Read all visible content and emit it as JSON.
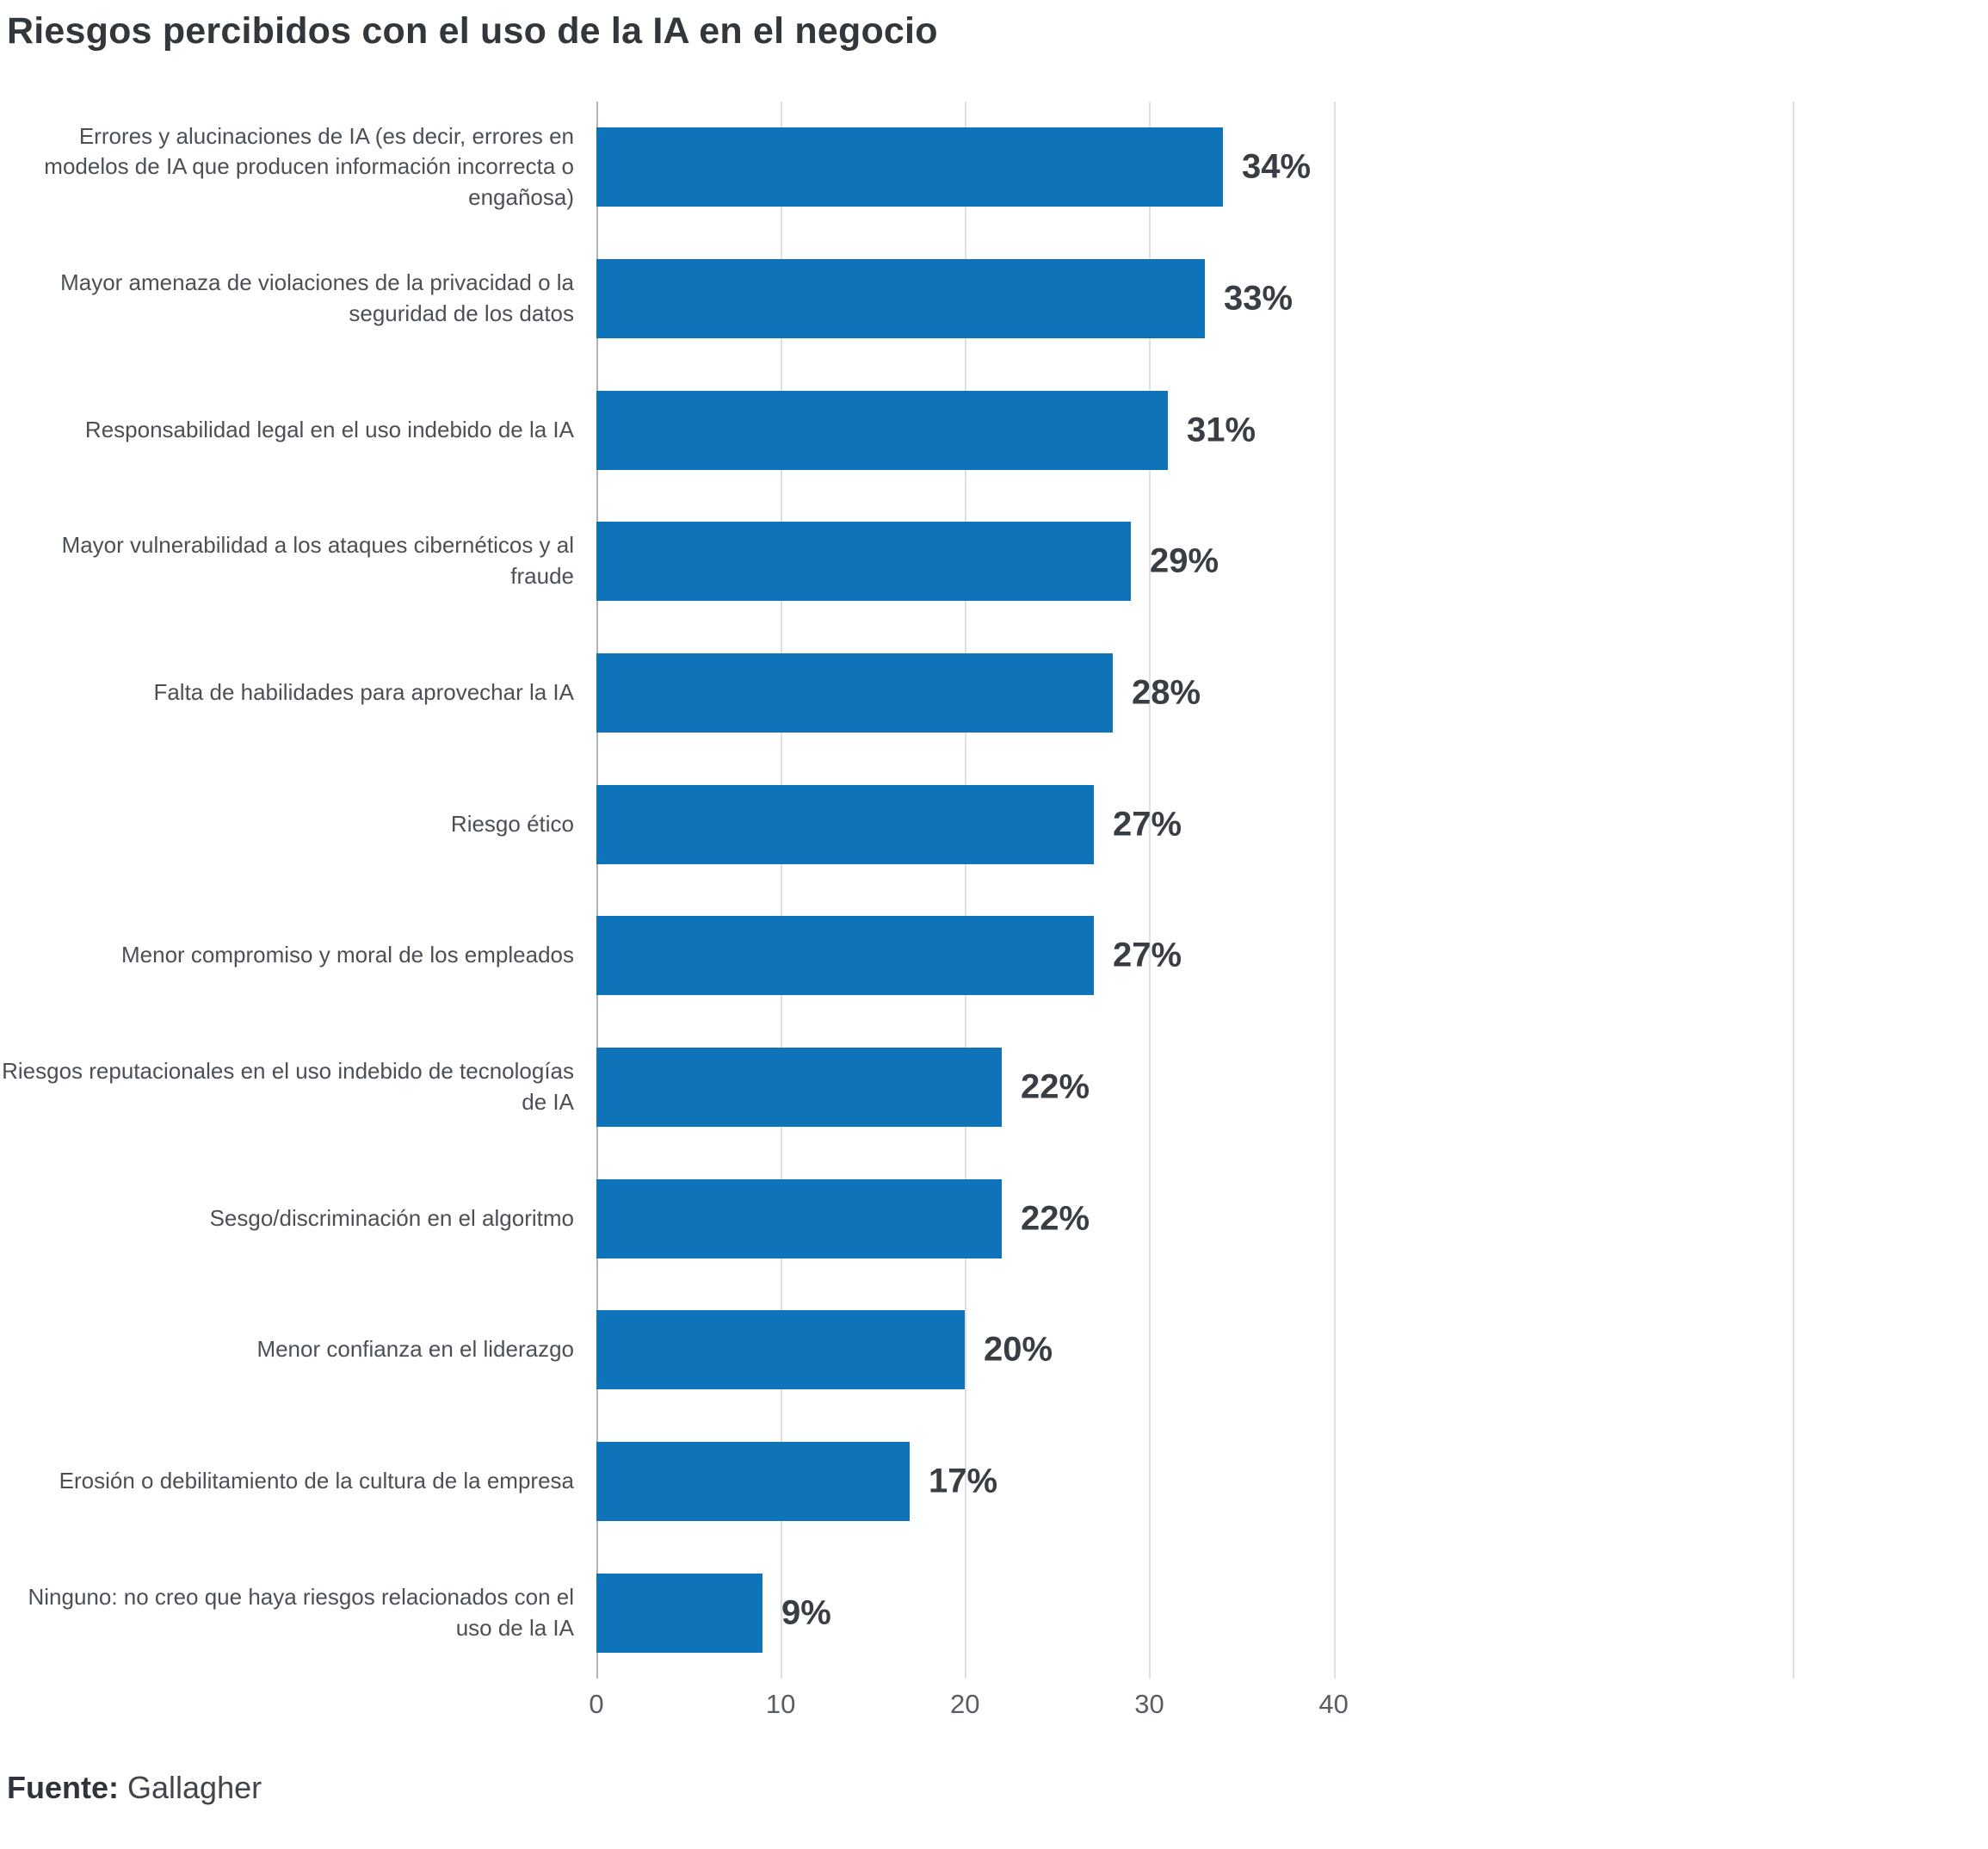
{
  "title": "Riesgos percibidos con el uso de la IA en el negocio",
  "source": {
    "label": "Fuente:",
    "value": "Gallagher"
  },
  "colors": {
    "bar_fill": "#0F73B9",
    "value_label": "#383E44",
    "category_label": "#4A5056",
    "gridline": "#DDE1E5",
    "axis_line": "#AFB5BA",
    "title_text": "#32373C"
  },
  "chart_data": {
    "type": "bar",
    "orientation": "horizontal",
    "title": "Riesgos percibidos con el uso de la IA en el negocio",
    "source": "Gallagher",
    "value_suffix": "%",
    "xlim": [
      0,
      40
    ],
    "plot_max": 65,
    "ticks": [
      0,
      10,
      20,
      30,
      40
    ],
    "grid": "vertical-light",
    "legend": "none",
    "categories": [
      "Errores y alucinaciones de IA (es decir, errores en modelos de IA que producen información incorrecta o engañosa)",
      "Mayor amenaza de violaciones de la privacidad o la seguridad de los datos",
      "Responsabilidad legal en el uso indebido de la IA",
      "Mayor vulnerabilidad a los ataques cibernéticos y al fraude",
      "Falta de habilidades para aprovechar la IA",
      "Riesgo ético",
      "Menor compromiso y moral de los empleados",
      "Riesgos reputacionales en el uso indebido de tecnologías de IA",
      "Sesgo/discriminación en el algoritmo",
      "Menor confianza en el liderazgo",
      "Erosión o debilitamiento de la cultura de la empresa",
      "Ninguno: no creo que haya riesgos relacionados con el uso de la IA"
    ],
    "values": [
      34,
      33,
      31,
      29,
      28,
      27,
      27,
      22,
      22,
      20,
      17,
      9
    ],
    "value_labels": [
      "34%",
      "33%",
      "31%",
      "29%",
      "28%",
      "27%",
      "27%",
      "22%",
      "22%",
      "20%",
      "17%",
      "9%"
    ]
  }
}
